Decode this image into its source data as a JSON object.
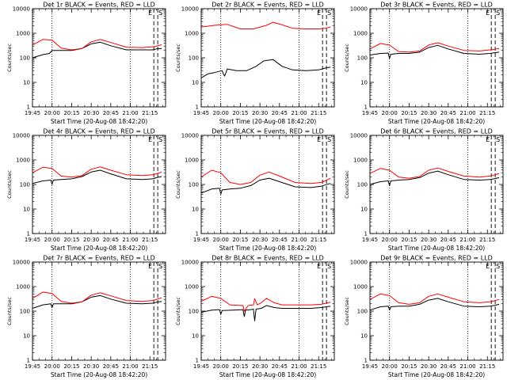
{
  "colors": {
    "events": "#000000",
    "lld": "#ff0000",
    "axes": "#000000",
    "background": "#ffffff"
  },
  "chart_data": [
    {
      "type": "line",
      "title": "Det 1r BLACK = Events, RED = LLD",
      "xlabel": "Start Time (20-Aug-08 18:42:20)",
      "ylabel": "Counts/sec",
      "y_scale": "log",
      "ylim": [
        1,
        10000
      ],
      "y_ticks": [
        "1",
        "10",
        "100",
        "1000",
        "10000"
      ],
      "x_ticks": [
        "19:45",
        "20:00",
        "20:15",
        "20:30",
        "20:45",
        "21:00",
        "21:15"
      ],
      "x_unit": "minutes after 19:45",
      "xlim": [
        0,
        102
      ],
      "annotations": [
        "E",
        "S"
      ],
      "markers": {
        "dotted": [
          15,
          75
        ],
        "dashed": [
          93,
          96
        ]
      },
      "series": [
        {
          "name": "Events",
          "color": "#000000",
          "x": [
            0,
            8,
            13,
            14,
            15,
            22,
            30,
            38,
            45,
            52,
            60,
            72,
            84,
            92,
            95,
            99
          ],
          "y": [
            100,
            135,
            150,
            175,
            200,
            200,
            200,
            240,
            370,
            430,
            310,
            210,
            210,
            210,
            230,
            240
          ]
        },
        {
          "name": "LLD",
          "color": "#ff0000",
          "x": [
            0,
            8,
            15,
            22,
            30,
            38,
            45,
            52,
            60,
            72,
            84,
            92,
            95,
            99
          ],
          "y": [
            330,
            560,
            520,
            250,
            210,
            240,
            450,
            560,
            420,
            270,
            260,
            280,
            300,
            340
          ]
        }
      ]
    },
    {
      "type": "line",
      "title": "Det 2r BLACK = Events, RED = LLD",
      "xlabel": "Start Time (20-Aug-08 18:42:20)",
      "ylabel": "Counts/sec",
      "y_scale": "log",
      "ylim": [
        1,
        10000
      ],
      "y_ticks": [
        "1",
        "10",
        "100",
        "1000",
        "10000"
      ],
      "x_ticks": [
        "19:45",
        "20:00",
        "20:15",
        "20:30",
        "20:45",
        "21:00",
        "21:15"
      ],
      "x_unit": "minutes after 19:45",
      "xlim": [
        0,
        102
      ],
      "annotations": [
        "E",
        "S"
      ],
      "markers": {
        "dotted": [
          15,
          75
        ],
        "dashed": [
          93,
          96
        ]
      },
      "series": [
        {
          "name": "Events",
          "color": "#000000",
          "x": [
            0,
            5,
            10,
            16,
            17,
            18,
            20,
            27,
            35,
            42,
            48,
            55,
            62,
            70,
            80,
            90,
            95,
            99
          ],
          "y": [
            15,
            22,
            25,
            30,
            22,
            18,
            35,
            30,
            30,
            45,
            75,
            85,
            45,
            32,
            30,
            32,
            38,
            42
          ]
        },
        {
          "name": "LLD",
          "color": "#ff0000",
          "x": [
            0,
            10,
            20,
            30,
            40,
            50,
            55,
            62,
            70,
            80,
            90,
            95,
            99
          ],
          "y": [
            1800,
            2100,
            2300,
            1500,
            1500,
            2100,
            2800,
            2200,
            1600,
            1500,
            1500,
            1600,
            1800
          ]
        }
      ]
    },
    {
      "type": "line",
      "title": "Det 3r BLACK = Events, RED = LLD",
      "xlabel": "Start Time (20-Aug-08 18:42:20)",
      "ylabel": "Counts/sec",
      "y_scale": "log",
      "ylim": [
        1,
        10000
      ],
      "y_ticks": [
        "1",
        "10",
        "100",
        "1000",
        "10000"
      ],
      "x_ticks": [
        "19:45",
        "20:00",
        "20:15",
        "20:30",
        "20:45",
        "21:00",
        "21:15"
      ],
      "x_unit": "minutes after 19:45",
      "xlim": [
        0,
        102
      ],
      "annotations": [
        "E",
        "S"
      ],
      "markers": {
        "dotted": [
          15,
          75
        ],
        "dashed": [
          93,
          96
        ]
      },
      "series": [
        {
          "name": "Events",
          "color": "#000000",
          "x": [
            0,
            8,
            14,
            15,
            16,
            22,
            30,
            38,
            45,
            52,
            60,
            72,
            84,
            92,
            95,
            99
          ],
          "y": [
            130,
            150,
            155,
            95,
            140,
            150,
            150,
            170,
            260,
            320,
            230,
            150,
            140,
            150,
            160,
            170
          ]
        },
        {
          "name": "LLD",
          "color": "#ff0000",
          "x": [
            0,
            8,
            15,
            22,
            30,
            38,
            45,
            52,
            60,
            72,
            84,
            92,
            95,
            99
          ],
          "y": [
            230,
            380,
            330,
            180,
            170,
            190,
            330,
            410,
            300,
            200,
            190,
            210,
            220,
            240
          ]
        }
      ]
    },
    {
      "type": "line",
      "title": "Det 4r BLACK = Events, RED = LLD",
      "xlabel": "Start Time (20-Aug-08 18:42:20)",
      "ylabel": "Counts/sec",
      "y_scale": "log",
      "ylim": [
        1,
        10000
      ],
      "y_ticks": [
        "1",
        "10",
        "100",
        "1000",
        "10000"
      ],
      "x_ticks": [
        "19:45",
        "20:00",
        "20:15",
        "20:30",
        "20:45",
        "21:00",
        "21:15"
      ],
      "x_unit": "minutes after 19:45",
      "xlim": [
        0,
        102
      ],
      "annotations": [
        "E",
        "S"
      ],
      "markers": {
        "dotted": [
          15,
          75
        ],
        "dashed": [
          93,
          96
        ]
      },
      "series": [
        {
          "name": "Events",
          "color": "#000000",
          "x": [
            0,
            8,
            14,
            15,
            16,
            22,
            30,
            38,
            45,
            52,
            60,
            72,
            84,
            92,
            95,
            99
          ],
          "y": [
            110,
            140,
            150,
            100,
            150,
            160,
            170,
            210,
            320,
            380,
            270,
            170,
            160,
            170,
            190,
            210
          ]
        },
        {
          "name": "LLD",
          "color": "#ff0000",
          "x": [
            0,
            8,
            15,
            22,
            30,
            38,
            45,
            52,
            60,
            72,
            84,
            92,
            95,
            99
          ],
          "y": [
            300,
            500,
            450,
            220,
            200,
            230,
            420,
            520,
            380,
            250,
            230,
            250,
            270,
            320
          ]
        }
      ]
    },
    {
      "type": "line",
      "title": "Det 5r BLACK = Events, RED = LLD",
      "xlabel": "Start Time (20-Aug-08 18:42:20)",
      "ylabel": "Counts/sec",
      "y_scale": "log",
      "ylim": [
        1,
        10000
      ],
      "y_ticks": [
        "1",
        "10",
        "100",
        "1000",
        "10000"
      ],
      "x_ticks": [
        "19:45",
        "20:00",
        "20:15",
        "20:30",
        "20:45",
        "21:00",
        "21:15"
      ],
      "x_unit": "minutes after 19:45",
      "xlim": [
        0,
        102
      ],
      "annotations": [
        "E",
        "S"
      ],
      "markers": {
        "dotted": [
          15,
          75
        ],
        "dashed": [
          93,
          96
        ]
      },
      "series": [
        {
          "name": "Events",
          "color": "#000000",
          "x": [
            0,
            8,
            14,
            15,
            16,
            22,
            30,
            38,
            45,
            52,
            60,
            72,
            84,
            92,
            95,
            99
          ],
          "y": [
            45,
            65,
            70,
            40,
            60,
            65,
            70,
            90,
            150,
            180,
            130,
            80,
            75,
            85,
            95,
            110
          ]
        },
        {
          "name": "LLD",
          "color": "#ff0000",
          "x": [
            0,
            8,
            15,
            22,
            30,
            38,
            45,
            52,
            60,
            72,
            84,
            92,
            95,
            99
          ],
          "y": [
            200,
            380,
            300,
            120,
            100,
            120,
            240,
            320,
            220,
            120,
            110,
            120,
            140,
            180
          ]
        }
      ]
    },
    {
      "type": "line",
      "title": "Det 6r BLACK = Events, RED = LLD",
      "xlabel": "Start Time (20-Aug-08 18:42:20)",
      "ylabel": "Counts/sec",
      "y_scale": "log",
      "ylim": [
        1,
        10000
      ],
      "y_ticks": [
        "1",
        "10",
        "100",
        "1000",
        "10000"
      ],
      "x_ticks": [
        "19:45",
        "20:00",
        "20:15",
        "20:30",
        "20:45",
        "21:00",
        "21:15"
      ],
      "x_unit": "minutes after 19:45",
      "xlim": [
        0,
        102
      ],
      "annotations": [
        "E",
        "S"
      ],
      "markers": {
        "dotted": [
          15,
          75
        ],
        "dashed": [
          93,
          96
        ]
      },
      "series": [
        {
          "name": "Events",
          "color": "#000000",
          "x": [
            0,
            8,
            14,
            15,
            16,
            22,
            30,
            38,
            45,
            52,
            60,
            72,
            84,
            92,
            95,
            99
          ],
          "y": [
            100,
            130,
            140,
            90,
            140,
            150,
            160,
            190,
            290,
            350,
            250,
            160,
            150,
            160,
            170,
            190
          ]
        },
        {
          "name": "LLD",
          "color": "#ff0000",
          "x": [
            0,
            8,
            15,
            22,
            30,
            38,
            45,
            52,
            60,
            72,
            84,
            92,
            95,
            99
          ],
          "y": [
            280,
            450,
            380,
            200,
            180,
            210,
            380,
            470,
            340,
            220,
            200,
            220,
            240,
            280
          ]
        }
      ]
    },
    {
      "type": "line",
      "title": "Det 7r BLACK = Events, RED = LLD",
      "xlabel": "Start Time (20-Aug-08 18:42:20)",
      "ylabel": "Counts/sec",
      "y_scale": "log",
      "ylim": [
        1,
        10000
      ],
      "y_ticks": [
        "1",
        "10",
        "100",
        "1000",
        "10000"
      ],
      "x_ticks": [
        "19:45",
        "20:00",
        "20:15",
        "20:30",
        "20:45",
        "21:00",
        "21:15"
      ],
      "x_unit": "minutes after 19:45",
      "xlim": [
        0,
        102
      ],
      "annotations": [
        "E",
        "S"
      ],
      "markers": {
        "dotted": [
          15,
          75
        ],
        "dashed": [
          93,
          96
        ]
      },
      "series": [
        {
          "name": "Events",
          "color": "#000000",
          "x": [
            0,
            8,
            14,
            15,
            16,
            22,
            30,
            38,
            45,
            52,
            60,
            72,
            84,
            92,
            95,
            99
          ],
          "y": [
            130,
            180,
            200,
            140,
            200,
            200,
            200,
            240,
            370,
            430,
            310,
            210,
            200,
            210,
            230,
            250
          ]
        },
        {
          "name": "LLD",
          "color": "#ff0000",
          "x": [
            0,
            8,
            15,
            22,
            30,
            38,
            45,
            52,
            60,
            72,
            84,
            92,
            95,
            99
          ],
          "y": [
            330,
            600,
            520,
            250,
            210,
            240,
            450,
            560,
            420,
            270,
            250,
            270,
            300,
            350
          ]
        }
      ]
    },
    {
      "type": "line",
      "title": "Det 8r BLACK = Events, RED = LLD",
      "xlabel": "Start Time (20-Aug-08 18:42:20)",
      "ylabel": "Counts/sec",
      "y_scale": "log",
      "ylim": [
        1,
        10000
      ],
      "y_ticks": [
        "1",
        "10",
        "100",
        "1000",
        "10000"
      ],
      "x_ticks": [
        "19:45",
        "20:00",
        "20:15",
        "20:30",
        "20:45",
        "21:00",
        "21:15"
      ],
      "x_unit": "minutes after 19:45",
      "xlim": [
        0,
        102
      ],
      "annotations": [
        "E",
        "S"
      ],
      "markers": {
        "dotted": [
          15,
          75
        ],
        "dashed": [
          93,
          96
        ]
      },
      "series": [
        {
          "name": "Events",
          "color": "#000000",
          "x": [
            0,
            8,
            14,
            15,
            16,
            24,
            32,
            33,
            34,
            38,
            40,
            41,
            42,
            46,
            50,
            56,
            62,
            72,
            84,
            92,
            99
          ],
          "y": [
            90,
            110,
            115,
            75,
            105,
            110,
            115,
            60,
            110,
            115,
            120,
            40,
            120,
            130,
            170,
            140,
            130,
            130,
            130,
            140,
            160
          ]
        },
        {
          "name": "LLD",
          "color": "#ff0000",
          "x": [
            0,
            8,
            15,
            22,
            30,
            32,
            33,
            36,
            40,
            41,
            43,
            46,
            50,
            56,
            62,
            72,
            84,
            92,
            99
          ],
          "y": [
            250,
            400,
            330,
            180,
            170,
            170,
            100,
            170,
            180,
            320,
            180,
            220,
            330,
            220,
            180,
            180,
            180,
            190,
            230
          ]
        }
      ]
    },
    {
      "type": "line",
      "title": "Det 9r BLACK = Events, RED = LLD",
      "xlabel": "Start Time (20-Aug-08 18:42:20)",
      "ylabel": "Counts/sec",
      "y_scale": "log",
      "ylim": [
        1,
        10000
      ],
      "y_ticks": [
        "1",
        "10",
        "100",
        "1000",
        "10000"
      ],
      "x_ticks": [
        "19:45",
        "20:00",
        "20:15",
        "20:30",
        "20:45",
        "21:00",
        "21:15"
      ],
      "x_unit": "minutes after 19:45",
      "xlim": [
        0,
        102
      ],
      "annotations": [
        "E",
        "S"
      ],
      "markers": {
        "dotted": [
          15,
          75
        ],
        "dashed": [
          93,
          96
        ]
      },
      "series": [
        {
          "name": "Events",
          "color": "#000000",
          "x": [
            0,
            8,
            14,
            15,
            16,
            22,
            30,
            38,
            45,
            52,
            60,
            72,
            84,
            92,
            95,
            99
          ],
          "y": [
            110,
            150,
            160,
            110,
            150,
            160,
            160,
            190,
            280,
            330,
            240,
            160,
            150,
            160,
            170,
            190
          ]
        },
        {
          "name": "LLD",
          "color": "#ff0000",
          "x": [
            0,
            8,
            15,
            22,
            30,
            38,
            45,
            52,
            60,
            72,
            84,
            92,
            95,
            99
          ],
          "y": [
            300,
            500,
            430,
            220,
            190,
            220,
            400,
            500,
            370,
            240,
            220,
            240,
            260,
            300
          ]
        }
      ]
    }
  ]
}
